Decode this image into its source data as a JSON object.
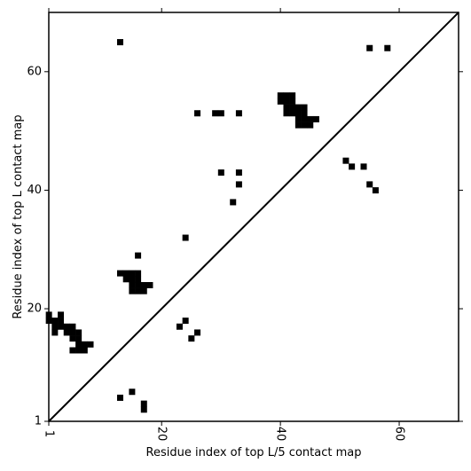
{
  "chart_data": {
    "type": "heatmap",
    "xlabel": "Residue index of top L/5 contact map",
    "ylabel": "Residue index of top L contact map",
    "xlim": [
      1,
      70
    ],
    "ylim": [
      1,
      70
    ],
    "x_ticks": [
      1,
      20,
      40,
      60
    ],
    "y_ticks": [
      1,
      20,
      40,
      60
    ],
    "x_tick_labels": [
      "1",
      "20",
      "40",
      "60"
    ],
    "y_tick_labels": [
      "1",
      "20",
      "40",
      "60"
    ],
    "grid": false,
    "diagonal": true,
    "cell_color": "#000000",
    "upper_triangle_cells": [
      [
        13,
        65
      ],
      [
        55,
        64
      ],
      [
        58,
        64
      ],
      [
        40,
        56
      ],
      [
        41,
        56
      ],
      [
        42,
        56
      ],
      [
        40,
        55
      ],
      [
        41,
        55
      ],
      [
        42,
        55
      ],
      [
        41,
        54
      ],
      [
        42,
        54
      ],
      [
        43,
        54
      ],
      [
        44,
        54
      ],
      [
        41,
        53
      ],
      [
        42,
        53
      ],
      [
        43,
        53
      ],
      [
        44,
        53
      ],
      [
        43,
        52
      ],
      [
        44,
        52
      ],
      [
        45,
        52
      ],
      [
        46,
        52
      ],
      [
        43,
        51
      ],
      [
        44,
        51
      ],
      [
        45,
        51
      ],
      [
        26,
        53
      ],
      [
        29,
        53
      ],
      [
        30,
        53
      ],
      [
        33,
        53
      ],
      [
        30,
        43
      ],
      [
        33,
        43
      ],
      [
        33,
        41
      ],
      [
        32,
        38
      ],
      [
        51,
        45
      ],
      [
        52,
        44
      ],
      [
        54,
        44
      ],
      [
        55,
        41
      ],
      [
        56,
        40
      ]
    ],
    "lower_triangle_cells": [
      [
        16,
        29
      ],
      [
        24,
        32
      ],
      [
        13,
        26
      ],
      [
        14,
        26
      ],
      [
        15,
        26
      ],
      [
        16,
        26
      ],
      [
        14,
        25
      ],
      [
        15,
        25
      ],
      [
        16,
        25
      ],
      [
        15,
        24
      ],
      [
        16,
        24
      ],
      [
        17,
        24
      ],
      [
        18,
        24
      ],
      [
        15,
        23
      ],
      [
        16,
        23
      ],
      [
        17,
        23
      ],
      [
        1,
        19
      ],
      [
        3,
        19
      ],
      [
        1,
        18
      ],
      [
        2,
        18
      ],
      [
        3,
        18
      ],
      [
        2,
        17
      ],
      [
        3,
        17
      ],
      [
        4,
        17
      ],
      [
        5,
        17
      ],
      [
        2,
        16
      ],
      [
        4,
        16
      ],
      [
        5,
        16
      ],
      [
        6,
        16
      ],
      [
        5,
        15
      ],
      [
        6,
        15
      ],
      [
        6,
        14
      ],
      [
        7,
        14
      ],
      [
        8,
        14
      ],
      [
        5,
        13
      ],
      [
        6,
        13
      ],
      [
        7,
        13
      ],
      [
        24,
        18
      ],
      [
        23,
        17
      ],
      [
        26,
        16
      ],
      [
        25,
        15
      ],
      [
        13,
        5
      ],
      [
        15,
        6
      ],
      [
        17,
        4
      ],
      [
        17,
        3
      ]
    ]
  }
}
